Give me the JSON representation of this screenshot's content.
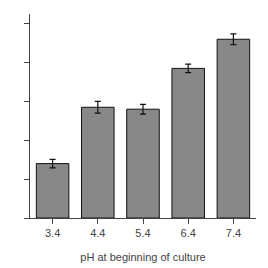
{
  "chart_data": {
    "type": "bar",
    "xlabel": "pH at beginning of culture",
    "categories": [
      "3.4",
      "4.4",
      "5.4",
      "6.4",
      "7.4"
    ],
    "values": [
      0.28,
      0.57,
      0.56,
      0.77,
      0.92
    ],
    "errors": [
      0.022,
      0.03,
      0.025,
      0.022,
      0.028
    ],
    "color": "#888888",
    "ylim": [
      0,
      1.05
    ],
    "yticks": [
      0.0,
      0.2,
      0.4,
      0.6,
      0.8,
      1.0
    ],
    "grid": false,
    "tick_labels": "x"
  }
}
